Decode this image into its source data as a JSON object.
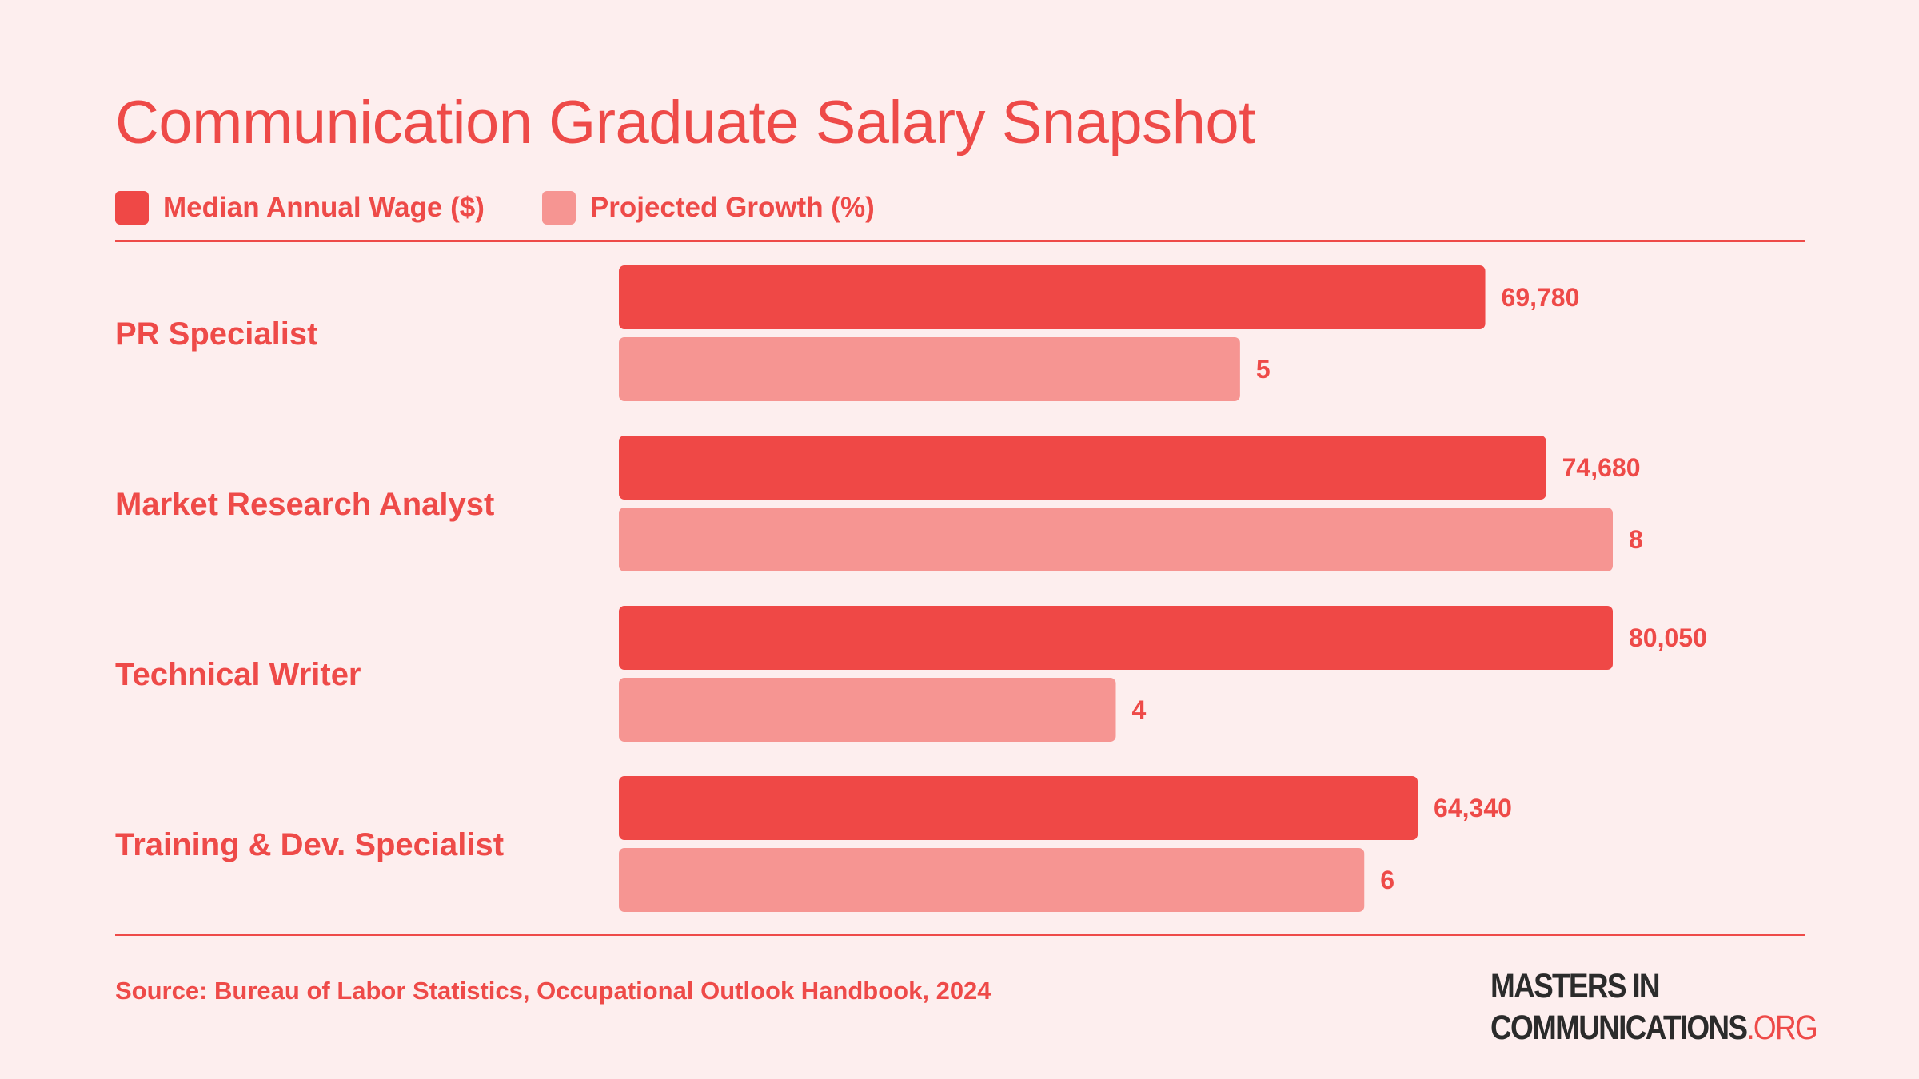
{
  "colors": {
    "background": "#fdeeee",
    "accent": "#ee4a48",
    "wage_bar": "#ef4846",
    "growth_bar": "#f69592",
    "logo_dark": "#2b2b2b"
  },
  "chart_data": {
    "type": "bar",
    "orientation": "horizontal",
    "title": "Communication Graduate Salary Snapshot",
    "categories": [
      "PR Specialist",
      "Market Research Analyst",
      "Technical Writer",
      "Training & Dev. Specialist"
    ],
    "series": [
      {
        "name": "Median Annual Wage ($)",
        "values": [
          69780,
          74680,
          80050,
          64340
        ],
        "value_labels": [
          "69,780",
          "74,680",
          "80,050",
          "64,340"
        ]
      },
      {
        "name": "Projected Growth (%)",
        "values": [
          5,
          8,
          4,
          6
        ],
        "value_labels": [
          "5",
          "8",
          "4",
          "6"
        ]
      }
    ],
    "legend_position": "top-left",
    "grid": false,
    "axes_visible": false
  },
  "footer": {
    "source": "Source: Bureau of Labor Statistics, Occupational Outlook Handbook, 2024",
    "logo_line1": "MASTERS IN",
    "logo_line2": "COMMUNICATIONS",
    "logo_org": ".ORG"
  }
}
